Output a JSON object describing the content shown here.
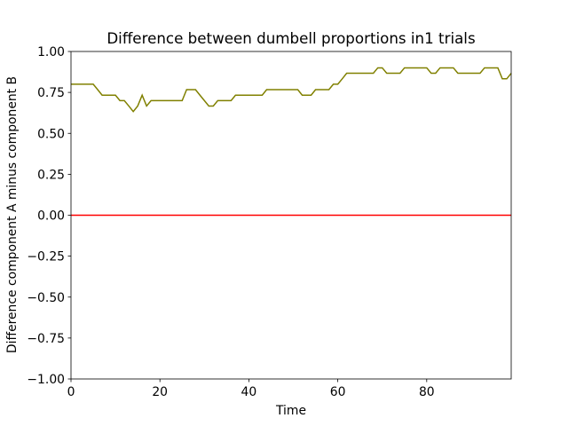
{
  "chart_data": {
    "type": "line",
    "title": "Difference between dumbell proportions in1 trials",
    "xlabel": "Time",
    "ylabel": "Difference component A minus component B",
    "x": [
      0,
      1,
      2,
      3,
      4,
      5,
      6,
      7,
      8,
      9,
      10,
      11,
      12,
      13,
      14,
      15,
      16,
      17,
      18,
      19,
      20,
      21,
      22,
      23,
      24,
      25,
      26,
      27,
      28,
      29,
      30,
      31,
      32,
      33,
      34,
      35,
      36,
      37,
      38,
      39,
      40,
      41,
      42,
      43,
      44,
      45,
      46,
      47,
      48,
      49,
      50,
      51,
      52,
      53,
      54,
      55,
      56,
      57,
      58,
      59,
      60,
      61,
      62,
      63,
      64,
      65,
      66,
      67,
      68,
      69,
      70,
      71,
      72,
      73,
      74,
      75,
      76,
      77,
      78,
      79,
      80,
      81,
      82,
      83,
      84,
      85,
      86,
      87,
      88,
      89,
      90,
      91,
      92,
      93,
      94,
      95,
      96,
      97,
      98,
      99
    ],
    "series": [
      {
        "color": "#808000",
        "values": [
          0.8,
          0.8,
          0.8,
          0.8,
          0.8,
          0.8,
          0.767,
          0.733,
          0.733,
          0.733,
          0.733,
          0.7,
          0.7,
          0.667,
          0.633,
          0.667,
          0.733,
          0.667,
          0.7,
          0.7,
          0.7,
          0.7,
          0.7,
          0.7,
          0.7,
          0.7,
          0.767,
          0.767,
          0.767,
          0.733,
          0.7,
          0.667,
          0.667,
          0.7,
          0.7,
          0.7,
          0.7,
          0.733,
          0.733,
          0.733,
          0.733,
          0.733,
          0.733,
          0.733,
          0.767,
          0.767,
          0.767,
          0.767,
          0.767,
          0.767,
          0.767,
          0.767,
          0.733,
          0.733,
          0.733,
          0.767,
          0.767,
          0.767,
          0.767,
          0.8,
          0.8,
          0.833,
          0.867,
          0.867,
          0.867,
          0.867,
          0.867,
          0.867,
          0.867,
          0.9,
          0.9,
          0.867,
          0.867,
          0.867,
          0.867,
          0.9,
          0.9,
          0.9,
          0.9,
          0.9,
          0.9,
          0.867,
          0.867,
          0.9,
          0.9,
          0.9,
          0.9,
          0.867,
          0.867,
          0.867,
          0.867,
          0.867,
          0.867,
          0.9,
          0.9,
          0.9,
          0.9,
          0.833,
          0.833,
          0.867
        ]
      }
    ],
    "hlines": [
      {
        "value": 0,
        "color": "#ff0000"
      }
    ],
    "xlim": [
      0,
      99
    ],
    "xticks": [
      0,
      20,
      40,
      60,
      80
    ],
    "ylim": [
      -1,
      1
    ],
    "yticks": [
      {
        "value": -1,
        "label": "−1.00"
      },
      {
        "value": -0.75,
        "label": "−0.75"
      },
      {
        "value": -0.5,
        "label": "−0.50"
      },
      {
        "value": -0.25,
        "label": "−0.25"
      },
      {
        "value": 0,
        "label": "0.00"
      },
      0.25,
      {
        "value": 0.5,
        "label": "0.50"
      },
      0.75,
      {
        "value": 1,
        "label": "1.00"
      }
    ]
  }
}
